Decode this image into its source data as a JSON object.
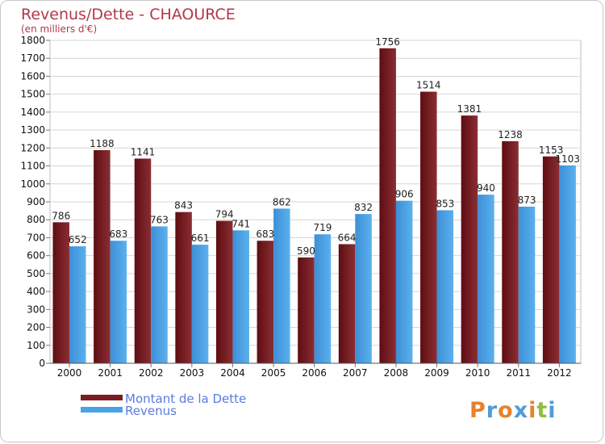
{
  "chart_data": {
    "type": "bar",
    "title": "Revenus/Dette - CHAOURCE",
    "subtitle": "(en milliers d'€)",
    "categories": [
      "2000",
      "2001",
      "2002",
      "2003",
      "2004",
      "2005",
      "2006",
      "2007",
      "2008",
      "2009",
      "2010",
      "2011",
      "2012"
    ],
    "series": [
      {
        "name": "Montant de la Dette",
        "color": "#7a1c22",
        "values": [
          786,
          1188,
          1141,
          843,
          794,
          683,
          590,
          664,
          1756,
          1514,
          1381,
          1238,
          1153
        ]
      },
      {
        "name": "Revenus",
        "color": "#4aa3e6",
        "values": [
          652,
          683,
          763,
          661,
          741,
          862,
          719,
          832,
          906,
          853,
          940,
          873,
          1103
        ]
      }
    ],
    "ylim": [
      0,
      1800
    ],
    "yticks": [
      0,
      100,
      200,
      300,
      400,
      500,
      600,
      700,
      800,
      900,
      1000,
      1100,
      1200,
      1300,
      1400,
      1500,
      1600,
      1700,
      1800
    ],
    "grid": true,
    "legend": "bottom-left",
    "xlabel": "",
    "ylabel": ""
  },
  "logo": {
    "text": "Proxiti",
    "letters": [
      "P",
      "r",
      "o",
      "x",
      "i",
      "t",
      "i"
    ],
    "colors": [
      "#e8812c",
      "#4f9bd8",
      "#e8812c",
      "#4f9bd8",
      "#e8812c",
      "#8cbf3f",
      "#4f9bd8"
    ]
  }
}
